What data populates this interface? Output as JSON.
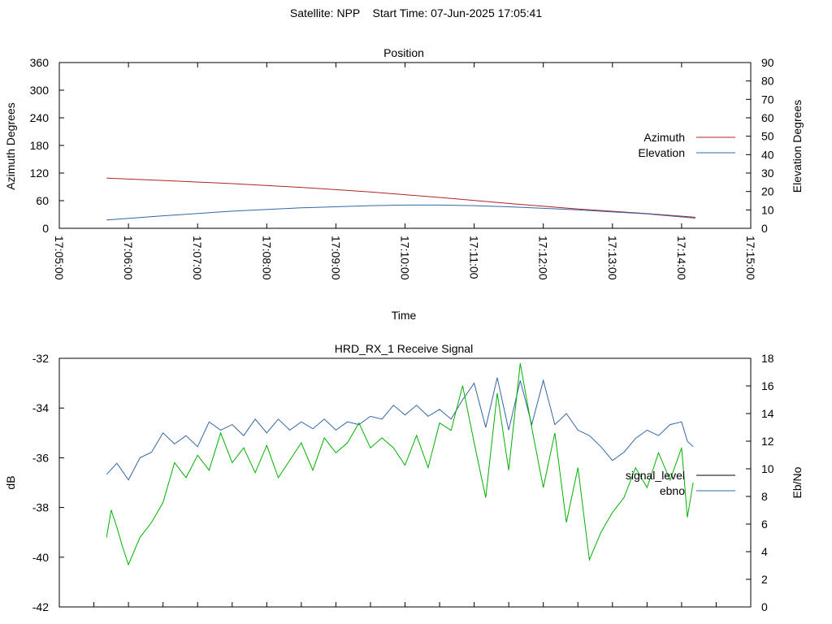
{
  "header": {
    "title": "Satellite: NPP    Start Time: 07-Jun-2025 17:05:41"
  },
  "colors": {
    "azimuth": "#b22222",
    "elevation": "#3465a4",
    "signal_level": "#00b000",
    "ebno": "#3465a4",
    "legend_signal_level": "#000000"
  },
  "chart_data": [
    {
      "type": "line",
      "title": "Position",
      "xlabel": "Time",
      "ylabel": "Azimuth Degrees",
      "y2label": "Elevation Degrees",
      "x_ticks": [
        "17:05:00",
        "17:06:00",
        "17:07:00",
        "17:08:00",
        "17:09:00",
        "17:10:00",
        "17:11:00",
        "17:12:00",
        "17:13:00",
        "17:14:00",
        "17:15:00"
      ],
      "xlim_seconds_after_17_05": [
        0,
        600
      ],
      "ylim": [
        0,
        360
      ],
      "y_ticks": [
        0,
        60,
        120,
        180,
        240,
        300,
        360
      ],
      "y2lim": [
        0,
        90
      ],
      "y2_ticks": [
        0,
        10,
        20,
        30,
        40,
        50,
        60,
        70,
        80,
        90
      ],
      "legend": "right",
      "grid": false,
      "series": [
        {
          "name": "Azimuth",
          "axis": "y",
          "x": [
            "17:05:41",
            "17:06:30",
            "17:07:30",
            "17:08:30",
            "17:09:30",
            "17:10:30",
            "17:11:30",
            "17:12:30",
            "17:13:30",
            "17:14:12"
          ],
          "values": [
            109,
            104,
            97,
            89,
            79,
            67,
            54,
            42,
            32,
            24
          ]
        },
        {
          "name": "Elevation",
          "axis": "y2",
          "x": [
            "17:05:41",
            "17:06:30",
            "17:07:30",
            "17:08:30",
            "17:09:30",
            "17:10:00",
            "17:10:30",
            "17:11:00",
            "17:11:30",
            "17:12:30",
            "17:13:30",
            "17:14:12"
          ],
          "values": [
            4.5,
            6.8,
            9.3,
            11.1,
            12.3,
            12.6,
            12.6,
            12.3,
            11.7,
            10.0,
            7.8,
            5.5
          ]
        }
      ]
    },
    {
      "type": "line",
      "title": "HRD_RX_1 Receive Signal",
      "ylabel": "dB",
      "y2label": "Eb/No",
      "ylim": [
        -42,
        -32
      ],
      "y_ticks": [
        -42,
        -40,
        -38,
        -36,
        -34,
        -32
      ],
      "y2lim": [
        0,
        18
      ],
      "y2_ticks": [
        0,
        2,
        4,
        6,
        8,
        10,
        12,
        14,
        16,
        18
      ],
      "xlim_seconds_after_17_05": [
        0,
        600
      ],
      "legend": "right",
      "grid": false,
      "series": [
        {
          "name": "signal_level",
          "axis": "y",
          "x": [
            "17:05:41",
            "17:05:45",
            "17:05:50",
            "17:05:55",
            "17:06:00",
            "17:06:10",
            "17:06:20",
            "17:06:30",
            "17:06:40",
            "17:06:50",
            "17:07:00",
            "17:07:10",
            "17:07:20",
            "17:07:30",
            "17:07:40",
            "17:07:50",
            "17:08:00",
            "17:08:10",
            "17:08:20",
            "17:08:30",
            "17:08:40",
            "17:08:50",
            "17:09:00",
            "17:09:10",
            "17:09:20",
            "17:09:30",
            "17:09:40",
            "17:09:50",
            "17:10:00",
            "17:10:10",
            "17:10:20",
            "17:10:30",
            "17:10:40",
            "17:10:50",
            "17:11:00",
            "17:11:10",
            "17:11:20",
            "17:11:30",
            "17:11:40",
            "17:11:50",
            "17:12:00",
            "17:12:10",
            "17:12:20",
            "17:12:30",
            "17:12:40",
            "17:12:50",
            "17:13:00",
            "17:13:10",
            "17:13:20",
            "17:13:30",
            "17:13:40",
            "17:13:50",
            "17:14:00",
            "17:14:05",
            "17:14:10"
          ],
          "values": [
            -39.2,
            -38.1,
            -38.8,
            -39.6,
            -40.3,
            -39.2,
            -38.6,
            -37.8,
            -36.2,
            -36.8,
            -35.9,
            -36.5,
            -35.0,
            -36.2,
            -35.6,
            -36.6,
            -35.5,
            -36.8,
            -36.1,
            -35.4,
            -36.5,
            -35.2,
            -35.8,
            -35.4,
            -34.6,
            -35.6,
            -35.2,
            -35.6,
            -36.3,
            -35.1,
            -36.4,
            -34.6,
            -34.9,
            -33.1,
            -35.4,
            -37.6,
            -33.4,
            -36.5,
            -32.2,
            -34.8,
            -37.2,
            -35.0,
            -38.6,
            -36.4,
            -40.1,
            -39.0,
            -38.2,
            -37.6,
            -36.4,
            -37.2,
            -35.8,
            -36.9,
            -35.6,
            -38.4,
            -37.0
          ]
        },
        {
          "name": "ebno",
          "axis": "y2",
          "x": [
            "17:05:41",
            "17:05:50",
            "17:06:00",
            "17:06:10",
            "17:06:20",
            "17:06:30",
            "17:06:40",
            "17:06:50",
            "17:07:00",
            "17:07:10",
            "17:07:20",
            "17:07:30",
            "17:07:40",
            "17:07:50",
            "17:08:00",
            "17:08:10",
            "17:08:20",
            "17:08:30",
            "17:08:40",
            "17:08:50",
            "17:09:00",
            "17:09:10",
            "17:09:20",
            "17:09:30",
            "17:09:40",
            "17:09:50",
            "17:10:00",
            "17:10:10",
            "17:10:20",
            "17:10:30",
            "17:10:40",
            "17:10:50",
            "17:11:00",
            "17:11:10",
            "17:11:20",
            "17:11:30",
            "17:11:40",
            "17:11:50",
            "17:12:00",
            "17:12:10",
            "17:12:20",
            "17:12:30",
            "17:12:40",
            "17:12:50",
            "17:13:00",
            "17:13:10",
            "17:13:20",
            "17:13:30",
            "17:13:40",
            "17:13:50",
            "17:14:00",
            "17:14:05",
            "17:14:10"
          ],
          "values": [
            9.6,
            10.4,
            9.2,
            10.8,
            11.2,
            12.6,
            11.8,
            12.4,
            11.6,
            13.4,
            12.8,
            13.2,
            12.4,
            13.6,
            12.6,
            13.6,
            12.8,
            13.4,
            12.9,
            13.6,
            12.8,
            13.4,
            13.2,
            13.8,
            13.6,
            14.6,
            13.9,
            14.6,
            13.8,
            14.3,
            13.6,
            15.0,
            16.2,
            13.0,
            16.6,
            12.8,
            16.4,
            13.2,
            16.4,
            13.2,
            14.0,
            12.8,
            12.4,
            11.6,
            10.6,
            11.2,
            12.2,
            12.8,
            12.4,
            13.2,
            13.4,
            12.0,
            11.6
          ]
        }
      ]
    }
  ]
}
